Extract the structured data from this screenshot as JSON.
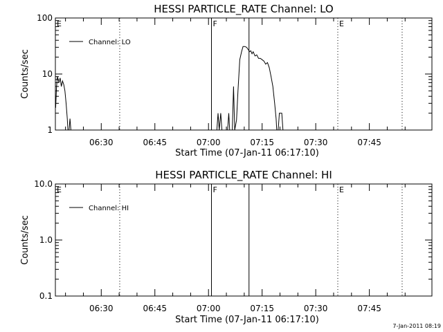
{
  "footer_timestamp": "7-Jan-2011 08:19",
  "chart_data": [
    {
      "type": "line",
      "title": "HESSI PARTICLE_RATE Channel: LO",
      "xlabel": "Start Time (07-Jan-11 06:17:10)",
      "ylabel": "Counts/sec",
      "yscale": "log",
      "xlim": [
        "06:17:10",
        "08:02:30"
      ],
      "ylim": [
        1,
        100
      ],
      "x_ticks": [
        "06:30",
        "06:45",
        "07:00",
        "07:15",
        "07:30",
        "07:45"
      ],
      "y_ticks": [
        "1",
        "10",
        "100"
      ],
      "legend": {
        "position": "top-left",
        "entries": [
          "Channel: LO"
        ]
      },
      "markers": [
        {
          "time": "06:17:10",
          "label": "E",
          "style": "none"
        },
        {
          "time": "06:35:10",
          "label": "",
          "style": "dotted"
        },
        {
          "time": "07:00:50",
          "label": "F",
          "style": "solid"
        },
        {
          "time": "07:11:20",
          "label": "",
          "style": "solid"
        },
        {
          "time": "07:36:10",
          "label": "E",
          "style": "dotted"
        },
        {
          "time": "07:54:10",
          "label": "",
          "style": "dotted"
        }
      ],
      "series": [
        {
          "segments": [
            [
              [
                "06:17:15",
                2.5
              ],
              [
                "06:17:30",
                6
              ],
              [
                "06:17:45",
                9
              ],
              [
                "06:18:10",
                7
              ],
              [
                "06:18:30",
                8.5
              ],
              [
                "06:18:50",
                6
              ],
              [
                "06:19:10",
                7.5
              ],
              [
                "06:19:30",
                6.5
              ],
              [
                "06:19:50",
                5
              ],
              [
                "06:20:10",
                3
              ],
              [
                "06:20:30",
                1.6
              ],
              [
                "06:20:40",
                1
              ],
              [
                "06:21:00",
                1
              ],
              [
                "06:21:15",
                1.6
              ],
              [
                "06:21:30",
                1
              ]
            ],
            [
              [
                "07:02:20",
                1
              ],
              [
                "07:02:40",
                2
              ],
              [
                "07:03:00",
                1
              ],
              [
                "07:03:25",
                2
              ],
              [
                "07:03:45",
                1
              ],
              [
                "07:05:20",
                1
              ],
              [
                "07:05:40",
                2
              ],
              [
                "07:05:55",
                1
              ],
              [
                "07:06:40",
                1
              ],
              [
                "07:07:00",
                6
              ],
              [
                "07:07:20",
                1
              ],
              [
                "07:07:50",
                1.5
              ],
              [
                "07:08:15",
                5
              ],
              [
                "07:08:45",
                18
              ],
              [
                "07:09:15",
                25
              ],
              [
                "07:09:40",
                31
              ],
              [
                "07:10:10",
                31
              ],
              [
                "07:10:40",
                30
              ],
              [
                "07:11:10",
                27
              ],
              [
                "07:11:30",
                25
              ],
              [
                "07:11:50",
                26
              ],
              [
                "07:12:10",
                23
              ],
              [
                "07:12:30",
                25
              ],
              [
                "07:13:00",
                21
              ],
              [
                "07:13:30",
                22
              ],
              [
                "07:14:00",
                19
              ],
              [
                "07:14:30",
                19
              ],
              [
                "07:15:00",
                18
              ],
              [
                "07:15:30",
                17
              ],
              [
                "07:16:00",
                15
              ],
              [
                "07:16:30",
                16
              ],
              [
                "07:17:00",
                13
              ],
              [
                "07:17:30",
                9
              ],
              [
                "07:18:00",
                6
              ],
              [
                "07:18:30",
                3
              ],
              [
                "07:18:55",
                1.6
              ],
              [
                "07:19:05",
                1
              ],
              [
                "07:19:30",
                1
              ],
              [
                "07:19:50",
                2
              ],
              [
                "07:20:30",
                2
              ],
              [
                "07:20:50",
                1
              ]
            ]
          ]
        }
      ]
    },
    {
      "type": "line",
      "title": "HESSI PARTICLE_RATE Channel: HI",
      "xlabel": "Start Time (07-Jan-11 06:17:10)",
      "ylabel": "Counts/sec",
      "yscale": "log",
      "xlim": [
        "06:17:10",
        "08:02:30"
      ],
      "ylim": [
        0.1,
        10
      ],
      "x_ticks": [
        "06:30",
        "06:45",
        "07:00",
        "07:15",
        "07:30",
        "07:45"
      ],
      "y_ticks": [
        "0.1",
        "1.0",
        "10.0"
      ],
      "legend": {
        "position": "top-left",
        "entries": [
          "Channel: HI"
        ]
      },
      "markers": [
        {
          "time": "06:17:10",
          "label": "E",
          "style": "none"
        },
        {
          "time": "06:35:10",
          "label": "",
          "style": "dotted"
        },
        {
          "time": "07:00:50",
          "label": "F",
          "style": "solid"
        },
        {
          "time": "07:11:20",
          "label": "",
          "style": "solid"
        },
        {
          "time": "07:36:10",
          "label": "E",
          "style": "dotted"
        },
        {
          "time": "07:54:10",
          "label": "",
          "style": "dotted"
        }
      ],
      "series": []
    }
  ]
}
